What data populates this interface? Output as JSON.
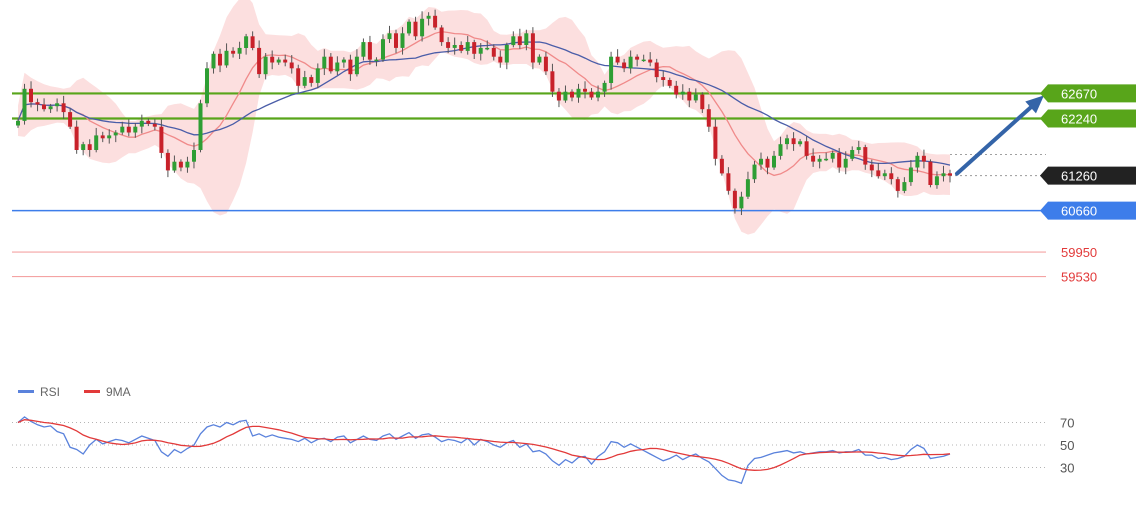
{
  "chart_data": [
    {
      "type": "candlestick",
      "ylim": [
        59300,
        64100
      ],
      "overlays": [
        "bollinger-bands",
        "moving-average-fast",
        "moving-average-slow"
      ],
      "levels": [
        {
          "label": "62670",
          "value": 62670,
          "style": "resistance",
          "color": "#58a51a",
          "tag": true
        },
        {
          "label": "62240",
          "value": 62240,
          "style": "resistance",
          "color": "#58a51a",
          "tag": true
        },
        {
          "label": "61260",
          "value": 61260,
          "style": "current",
          "color": "#222222",
          "tag": true
        },
        {
          "label": "60660",
          "value": 60660,
          "style": "support",
          "color": "#3d7dea",
          "tag": true
        },
        {
          "label": "59950",
          "value": 59950,
          "style": "target",
          "color": "#e23a3a",
          "tag": false
        },
        {
          "label": "59530",
          "value": 59530,
          "style": "target",
          "color": "#e23a3a",
          "tag": false
        }
      ],
      "arrow": {
        "from": 61260,
        "to": 62670,
        "direction": "up",
        "color": "#3464a8"
      },
      "close": [
        62200,
        62750,
        62520,
        62480,
        62400,
        62450,
        62500,
        62350,
        62100,
        61700,
        61800,
        61700,
        61950,
        61900,
        61950,
        62000,
        62100,
        62000,
        62100,
        62200,
        62150,
        62100,
        61650,
        61350,
        61500,
        61400,
        61500,
        61700,
        62500,
        63100,
        63350,
        63150,
        63400,
        63350,
        63450,
        63650,
        63450,
        63000,
        63300,
        63200,
        63250,
        63200,
        63100,
        62800,
        62950,
        62850,
        63100,
        63300,
        63050,
        63200,
        63250,
        63000,
        63300,
        63550,
        63250,
        63250,
        63600,
        63700,
        63450,
        63700,
        63900,
        63650,
        63950,
        64000,
        63800,
        63550,
        63450,
        63500,
        63400,
        63550,
        63350,
        63450,
        63450,
        63300,
        63200,
        63500,
        63650,
        63500,
        63700,
        63200,
        63300,
        63050,
        62700,
        62550,
        62700,
        62600,
        62750,
        62700,
        62600,
        62700,
        62850,
        63300,
        63200,
        63100,
        63300,
        63250,
        63250,
        63200,
        62950,
        62900,
        62800,
        62650,
        62700,
        62550,
        62650,
        62400,
        62100,
        61550,
        61300,
        61000,
        60700,
        60900,
        61200,
        61450,
        61550,
        61400,
        61600,
        61800,
        61900,
        61800,
        61850,
        61600,
        61500,
        61550,
        61550,
        61650,
        61400,
        61550,
        61700,
        61750,
        61450,
        61350,
        61250,
        61300,
        61200,
        61000,
        61150,
        61400,
        61600,
        61500,
        61100,
        61250,
        61300,
        61260
      ],
      "rsi": {
        "legend": [
          {
            "name": "RSI",
            "color": "#5a82dc"
          },
          {
            "name": "9MA",
            "color": "#e23a3a"
          }
        ],
        "ticks": [
          70,
          50,
          30
        ],
        "ylim": [
          10,
          90
        ],
        "values": [
          70,
          75,
          71,
          68,
          66,
          67,
          62,
          60,
          48,
          46,
          42,
          50,
          55,
          51,
          53,
          55,
          54,
          52,
          55,
          58,
          56,
          54,
          44,
          40,
          46,
          43,
          47,
          50,
          60,
          66,
          68,
          66,
          70,
          68,
          71,
          72,
          58,
          60,
          57,
          59,
          57,
          56,
          55,
          53,
          56,
          52,
          55,
          56,
          53,
          57,
          58,
          52,
          55,
          58,
          55,
          54,
          58,
          60,
          55,
          58,
          61,
          56,
          59,
          60,
          57,
          53,
          55,
          54,
          52,
          56,
          50,
          55,
          53,
          50,
          48,
          52,
          54,
          48,
          51,
          44,
          45,
          42,
          36,
          32,
          37,
          34,
          39,
          40,
          33,
          40,
          44,
          53,
          52,
          48,
          51,
          48,
          45,
          42,
          39,
          36,
          38,
          41,
          37,
          40,
          42,
          38,
          35,
          29,
          23,
          19,
          18,
          16,
          32,
          38,
          39,
          41,
          43,
          44,
          45,
          43,
          44,
          42,
          43,
          44,
          44,
          45,
          43,
          44,
          44,
          46,
          41,
          41,
          38,
          39,
          37,
          38,
          40,
          46,
          50,
          47,
          38,
          39,
          40,
          42
        ]
      }
    }
  ]
}
